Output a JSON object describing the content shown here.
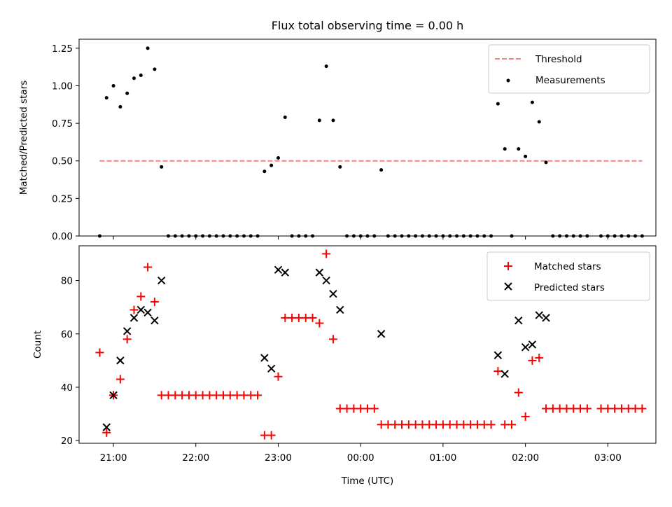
{
  "title": "Flux total observing time = 0.00 h",
  "chart_data": [
    {
      "type": "scatter",
      "ylabel": "Matched/Predicted stars",
      "ylim": [
        0,
        1.31
      ],
      "xlim": [
        "20:35",
        "03:35"
      ],
      "yticks": [
        0,
        0.25,
        0.5,
        0.75,
        1.0,
        1.25
      ],
      "ytick_labels": [
        "0.00",
        "0.25",
        "0.50",
        "0.75",
        "1.00",
        "1.25"
      ],
      "grid": false,
      "legend_position": "upper right",
      "threshold": {
        "name": "Threshold",
        "value": 0.5,
        "x_start": "20:50",
        "x_end": "03:25",
        "color": "#ff7f7f",
        "style": "dashed"
      },
      "series": [
        {
          "name": "Measurements",
          "color": "#000000",
          "marker": "dot",
          "points": [
            [
              "20:50",
              0
            ],
            [
              "20:55",
              0.92
            ],
            [
              "21:00",
              1.0
            ],
            [
              "21:05",
              0.86
            ],
            [
              "21:10",
              0.95
            ],
            [
              "21:15",
              1.05
            ],
            [
              "21:20",
              1.07
            ],
            [
              "21:25",
              1.25
            ],
            [
              "21:30",
              1.11
            ],
            [
              "21:35",
              0.46
            ],
            [
              "21:40",
              0
            ],
            [
              "21:45",
              0
            ],
            [
              "21:50",
              0
            ],
            [
              "21:55",
              0
            ],
            [
              "22:00",
              0
            ],
            [
              "22:05",
              0
            ],
            [
              "22:10",
              0
            ],
            [
              "22:15",
              0
            ],
            [
              "22:20",
              0
            ],
            [
              "22:25",
              0
            ],
            [
              "22:30",
              0
            ],
            [
              "22:35",
              0
            ],
            [
              "22:40",
              0
            ],
            [
              "22:45",
              0
            ],
            [
              "22:50",
              0.43
            ],
            [
              "22:55",
              0.47
            ],
            [
              "23:00",
              0.52
            ],
            [
              "23:05",
              0.79
            ],
            [
              "23:10",
              0
            ],
            [
              "23:15",
              0
            ],
            [
              "23:20",
              0
            ],
            [
              "23:25",
              0
            ],
            [
              "23:30",
              0.77
            ],
            [
              "23:35",
              1.13
            ],
            [
              "23:40",
              0.77
            ],
            [
              "23:45",
              0.46
            ],
            [
              "23:50",
              0
            ],
            [
              "23:55",
              0
            ],
            [
              "00:00",
              0
            ],
            [
              "00:05",
              0
            ],
            [
              "00:10",
              0
            ],
            [
              "00:15",
              0.44
            ],
            [
              "00:20",
              0
            ],
            [
              "00:25",
              0
            ],
            [
              "00:30",
              0
            ],
            [
              "00:35",
              0
            ],
            [
              "00:40",
              0
            ],
            [
              "00:45",
              0
            ],
            [
              "00:50",
              0
            ],
            [
              "00:55",
              0
            ],
            [
              "01:00",
              0
            ],
            [
              "01:05",
              0
            ],
            [
              "01:10",
              0
            ],
            [
              "01:15",
              0
            ],
            [
              "01:20",
              0
            ],
            [
              "01:25",
              0
            ],
            [
              "01:30",
              0
            ],
            [
              "01:35",
              0
            ],
            [
              "01:40",
              0.88
            ],
            [
              "01:45",
              0.58
            ],
            [
              "01:50",
              0
            ],
            [
              "01:55",
              0.58
            ],
            [
              "02:00",
              0.53
            ],
            [
              "02:05",
              0.89
            ],
            [
              "02:10",
              0.76
            ],
            [
              "02:15",
              0.49
            ],
            [
              "02:20",
              0
            ],
            [
              "02:25",
              0
            ],
            [
              "02:30",
              0
            ],
            [
              "02:35",
              0
            ],
            [
              "02:40",
              0
            ],
            [
              "02:45",
              0
            ],
            [
              "02:55",
              0
            ],
            [
              "03:00",
              0
            ],
            [
              "03:05",
              0
            ],
            [
              "03:10",
              0
            ],
            [
              "03:15",
              0
            ],
            [
              "03:20",
              0
            ],
            [
              "03:25",
              0
            ]
          ]
        }
      ]
    },
    {
      "type": "scatter",
      "ylabel": "Count",
      "xlabel": "Time (UTC)",
      "ylim": [
        19,
        93
      ],
      "xlim": [
        "20:35",
        "03:35"
      ],
      "yticks": [
        20,
        40,
        60,
        80
      ],
      "xticks": [
        "21:00",
        "22:00",
        "23:00",
        "00:00",
        "01:00",
        "02:00",
        "03:00"
      ],
      "grid": false,
      "legend_position": "upper right",
      "series": [
        {
          "name": "Matched stars",
          "color": "#ff0000",
          "marker": "plus",
          "points": [
            [
              "20:50",
              53
            ],
            [
              "20:55",
              23
            ],
            [
              "21:00",
              37
            ],
            [
              "21:05",
              43
            ],
            [
              "21:10",
              58
            ],
            [
              "21:15",
              69
            ],
            [
              "21:20",
              74
            ],
            [
              "21:25",
              85
            ],
            [
              "21:30",
              72
            ],
            [
              "21:35",
              37
            ],
            [
              "21:40",
              37
            ],
            [
              "21:45",
              37
            ],
            [
              "21:50",
              37
            ],
            [
              "21:55",
              37
            ],
            [
              "22:00",
              37
            ],
            [
              "22:05",
              37
            ],
            [
              "22:10",
              37
            ],
            [
              "22:15",
              37
            ],
            [
              "22:20",
              37
            ],
            [
              "22:25",
              37
            ],
            [
              "22:30",
              37
            ],
            [
              "22:35",
              37
            ],
            [
              "22:40",
              37
            ],
            [
              "22:45",
              37
            ],
            [
              "22:50",
              22
            ],
            [
              "22:55",
              22
            ],
            [
              "23:00",
              44
            ],
            [
              "23:05",
              66
            ],
            [
              "23:10",
              66
            ],
            [
              "23:15",
              66
            ],
            [
              "23:20",
              66
            ],
            [
              "23:25",
              66
            ],
            [
              "23:30",
              64
            ],
            [
              "23:35",
              90
            ],
            [
              "23:40",
              58
            ],
            [
              "23:45",
              32
            ],
            [
              "23:50",
              32
            ],
            [
              "23:55",
              32
            ],
            [
              "00:00",
              32
            ],
            [
              "00:05",
              32
            ],
            [
              "00:10",
              32
            ],
            [
              "00:15",
              26
            ],
            [
              "00:20",
              26
            ],
            [
              "00:25",
              26
            ],
            [
              "00:30",
              26
            ],
            [
              "00:35",
              26
            ],
            [
              "00:40",
              26
            ],
            [
              "00:45",
              26
            ],
            [
              "00:50",
              26
            ],
            [
              "00:55",
              26
            ],
            [
              "01:00",
              26
            ],
            [
              "01:05",
              26
            ],
            [
              "01:10",
              26
            ],
            [
              "01:15",
              26
            ],
            [
              "01:20",
              26
            ],
            [
              "01:25",
              26
            ],
            [
              "01:30",
              26
            ],
            [
              "01:35",
              26
            ],
            [
              "01:40",
              46
            ],
            [
              "01:45",
              26
            ],
            [
              "01:50",
              26
            ],
            [
              "01:55",
              38
            ],
            [
              "02:00",
              29
            ],
            [
              "02:05",
              50
            ],
            [
              "02:10",
              51
            ],
            [
              "02:15",
              32
            ],
            [
              "02:20",
              32
            ],
            [
              "02:25",
              32
            ],
            [
              "02:30",
              32
            ],
            [
              "02:35",
              32
            ],
            [
              "02:40",
              32
            ],
            [
              "02:45",
              32
            ],
            [
              "02:55",
              32
            ],
            [
              "03:00",
              32
            ],
            [
              "03:05",
              32
            ],
            [
              "03:10",
              32
            ],
            [
              "03:15",
              32
            ],
            [
              "03:20",
              32
            ],
            [
              "03:25",
              32
            ]
          ]
        },
        {
          "name": "Predicted stars",
          "color": "#000000",
          "marker": "x",
          "points": [
            [
              "20:55",
              25
            ],
            [
              "21:00",
              37
            ],
            [
              "21:05",
              50
            ],
            [
              "21:10",
              61
            ],
            [
              "21:15",
              66
            ],
            [
              "21:20",
              69
            ],
            [
              "21:25",
              68
            ],
            [
              "21:30",
              65
            ],
            [
              "21:35",
              80
            ],
            [
              "22:50",
              51
            ],
            [
              "22:55",
              47
            ],
            [
              "23:00",
              84
            ],
            [
              "23:05",
              83
            ],
            [
              "23:30",
              83
            ],
            [
              "23:35",
              80
            ],
            [
              "23:40",
              75
            ],
            [
              "23:45",
              69
            ],
            [
              "00:15",
              60
            ],
            [
              "01:40",
              52
            ],
            [
              "01:45",
              45
            ],
            [
              "01:55",
              65
            ],
            [
              "02:00",
              55
            ],
            [
              "02:05",
              56
            ],
            [
              "02:10",
              67
            ],
            [
              "02:15",
              66
            ]
          ]
        }
      ]
    }
  ]
}
